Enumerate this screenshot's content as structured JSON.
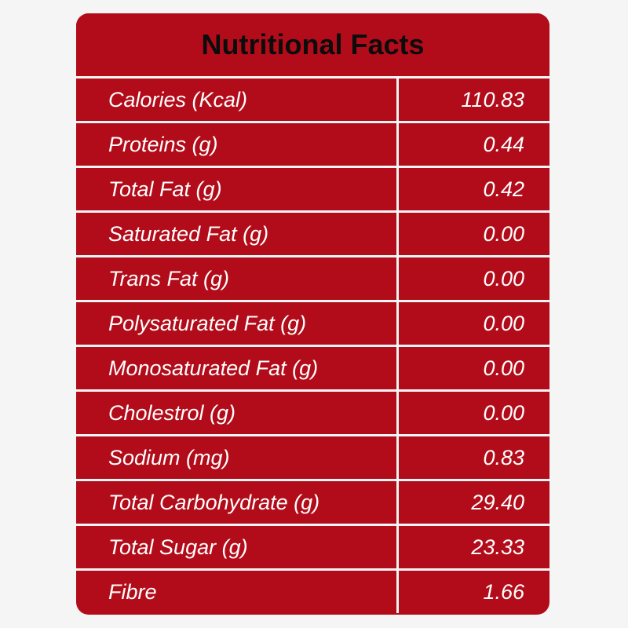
{
  "title": "Nutritional Facts",
  "colors": {
    "panel": "#b20c1a",
    "background": "#f5f5f5",
    "text": "#ffffff",
    "title_text": "#0c0c0c"
  },
  "rows": [
    {
      "label": "Calories (Kcal)",
      "value": "110.83"
    },
    {
      "label": "Proteins (g)",
      "value": "0.44"
    },
    {
      "label": "Total Fat (g)",
      "value": "0.42"
    },
    {
      "label": "Saturated Fat (g)",
      "value": "0.00"
    },
    {
      "label": "Trans Fat (g)",
      "value": "0.00"
    },
    {
      "label": "Polysaturated Fat (g)",
      "value": "0.00"
    },
    {
      "label": "Monosaturated Fat (g)",
      "value": "0.00"
    },
    {
      "label": "Cholestrol (g)",
      "value": "0.00"
    },
    {
      "label": "Sodium (mg)",
      "value": "0.83"
    },
    {
      "label": "Total Carbohydrate (g)",
      "value": "29.40"
    },
    {
      "label": "Total Sugar (g)",
      "value": "23.33"
    },
    {
      "label": "Fibre",
      "value": "1.66"
    }
  ]
}
